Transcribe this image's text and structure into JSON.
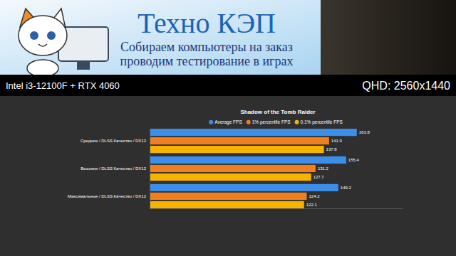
{
  "header": {
    "title": "Техно КЭП",
    "lines": [
      "Собираем компьютеры на заказ",
      "проводим тестирование в играх"
    ]
  },
  "info": {
    "left": "Intel i3-12100F + RTX 4060",
    "right": "QHD: 2560x1440"
  },
  "chart_data": {
    "type": "bar",
    "orientation": "horizontal",
    "title": "Shadow of the Tomb Raider",
    "categories": [
      "Средние / DLSS Качество / DX12",
      "Высокие / DLSS Качество / DX12",
      "Максимальные / DLSS Качество / DX12"
    ],
    "series": [
      {
        "name": "Average FPS",
        "color": "#3d8ee8",
        "values": [
          163.8,
          155.4,
          149.2
        ]
      },
      {
        "name": "1% percentile FPS",
        "color": "#f07f1f",
        "values": [
          141.9,
          131.2,
          124.2
        ]
      },
      {
        "name": "0.1% percentile FPS",
        "color": "#f6b400",
        "values": [
          137.8,
          127.7,
          122.1
        ]
      }
    ],
    "xlim": [
      0,
      200
    ],
    "data_labels": true,
    "tick_labels": "y",
    "legend": "top",
    "grid": false
  }
}
